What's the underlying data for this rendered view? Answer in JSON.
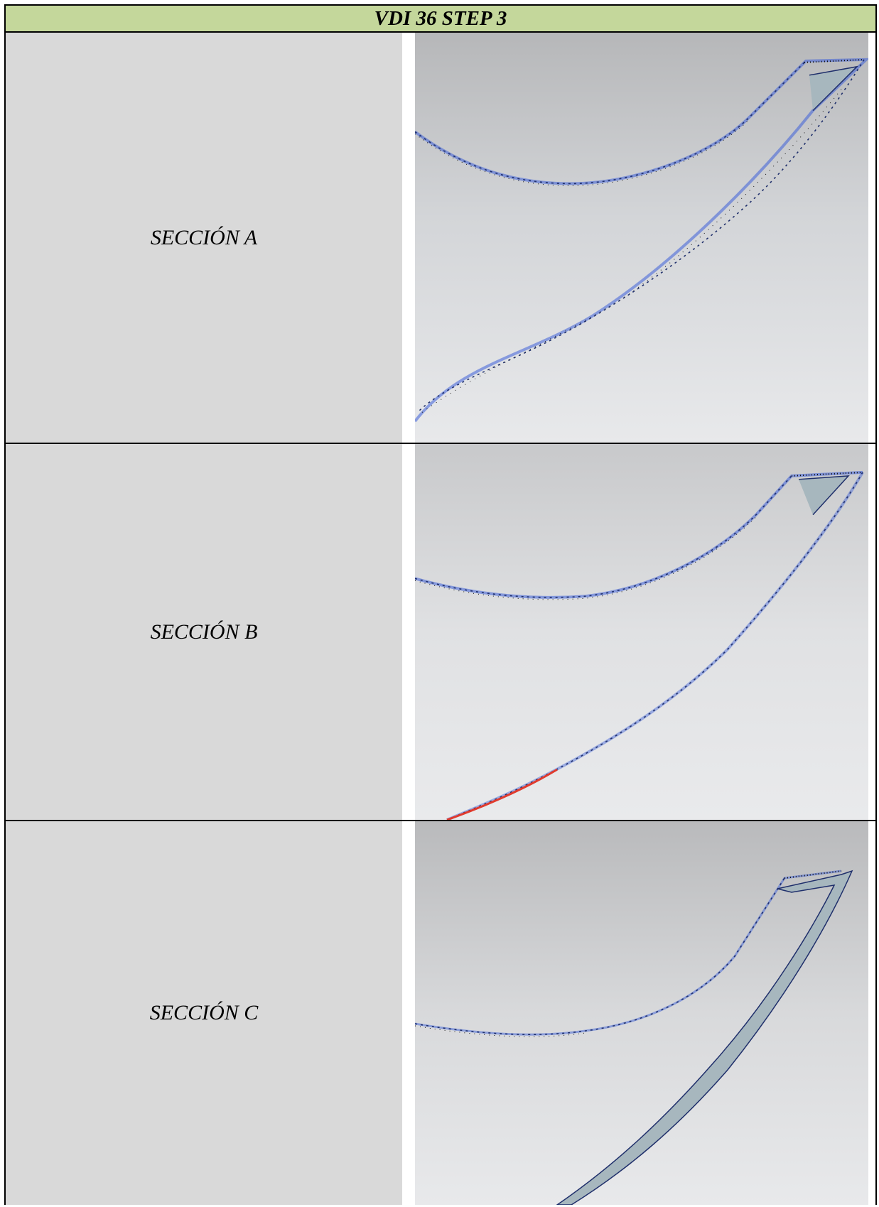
{
  "table": {
    "title": "VDI 36 STEP 3",
    "rows": [
      {
        "label": "SECCIÓN A",
        "image_name": "blade-section-a-scan"
      },
      {
        "label": "SECCIÓN B",
        "image_name": "blade-section-b-scan"
      },
      {
        "label": "SECCIÓN C",
        "image_name": "blade-section-c-scan"
      }
    ]
  },
  "colors": {
    "header_bg": "#c4d79b",
    "label_bg": "#d9d9d9",
    "profile_fill": "#a7b7be",
    "nominal_line": "#1f2f6b",
    "measure_blue": "#3c5fd8",
    "measure_black": "#111111",
    "deviation_red": "#e03b2e"
  }
}
